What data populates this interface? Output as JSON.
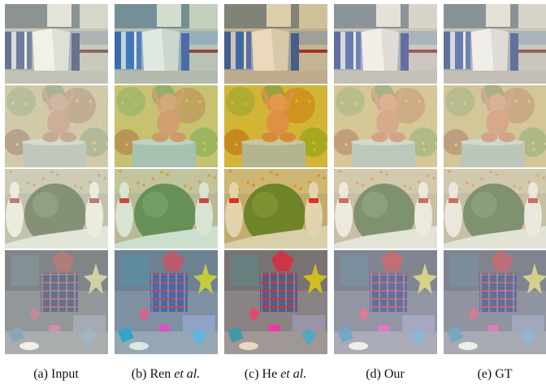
{
  "figure": {
    "columns": [
      {
        "id": "a",
        "label": "(a)",
        "text": "Input",
        "emphasis": "",
        "tint": "#c8d2b8",
        "sat": 0.55,
        "bright": 1.08,
        "shift": "#e8efd8"
      },
      {
        "id": "b",
        "label": "(b)",
        "text": "Ren",
        "emphasis": "et al.",
        "tint": "#9fd0c0",
        "sat": 1.25,
        "bright": 1.0,
        "shift": "#b6e6da"
      },
      {
        "id": "c",
        "label": "(c)",
        "text": "He",
        "emphasis": "et al.",
        "tint": "#d8b070",
        "sat": 1.4,
        "bright": 0.95,
        "shift": "#e8c070"
      },
      {
        "id": "d",
        "label": "(d)",
        "text": "Our",
        "emphasis": "",
        "tint": "#e0ddd0",
        "sat": 0.9,
        "bright": 1.05,
        "shift": "#f4f2ea"
      },
      {
        "id": "e",
        "label": "(e)",
        "text": "GT",
        "emphasis": "",
        "tint": "#d6d2c4",
        "sat": 0.85,
        "bright": 1.05,
        "shift": "#eeece4"
      }
    ],
    "rows": [
      {
        "id": "books",
        "name": "bookshelf-scene"
      },
      {
        "id": "doll",
        "name": "doll-map-scene"
      },
      {
        "id": "balls",
        "name": "ball-bowling-pin-scene"
      },
      {
        "id": "toys",
        "name": "toys-scene"
      }
    ]
  }
}
